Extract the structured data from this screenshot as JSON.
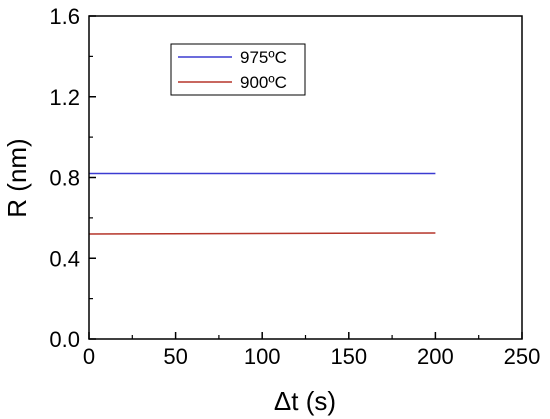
{
  "chart_data": {
    "type": "line",
    "xlabel": "Δt (s)",
    "ylabel": "R (nm)",
    "xlim": [
      0,
      250
    ],
    "ylim": [
      0.0,
      1.6
    ],
    "x_ticks": [
      "0",
      "50",
      "100",
      "150",
      "200",
      "250"
    ],
    "y_ticks": [
      "0.0",
      "0.4",
      "0.8",
      "1.2",
      "1.6"
    ],
    "grid": false,
    "legend_position": "top-center",
    "series": [
      {
        "name": "975ºC",
        "color": "#3b3bd1",
        "x": [
          0,
          200
        ],
        "y": [
          0.82,
          0.82
        ]
      },
      {
        "name": "900ºC",
        "color": "#b5352a",
        "x": [
          0,
          200
        ],
        "y": [
          0.52,
          0.525
        ]
      }
    ]
  }
}
